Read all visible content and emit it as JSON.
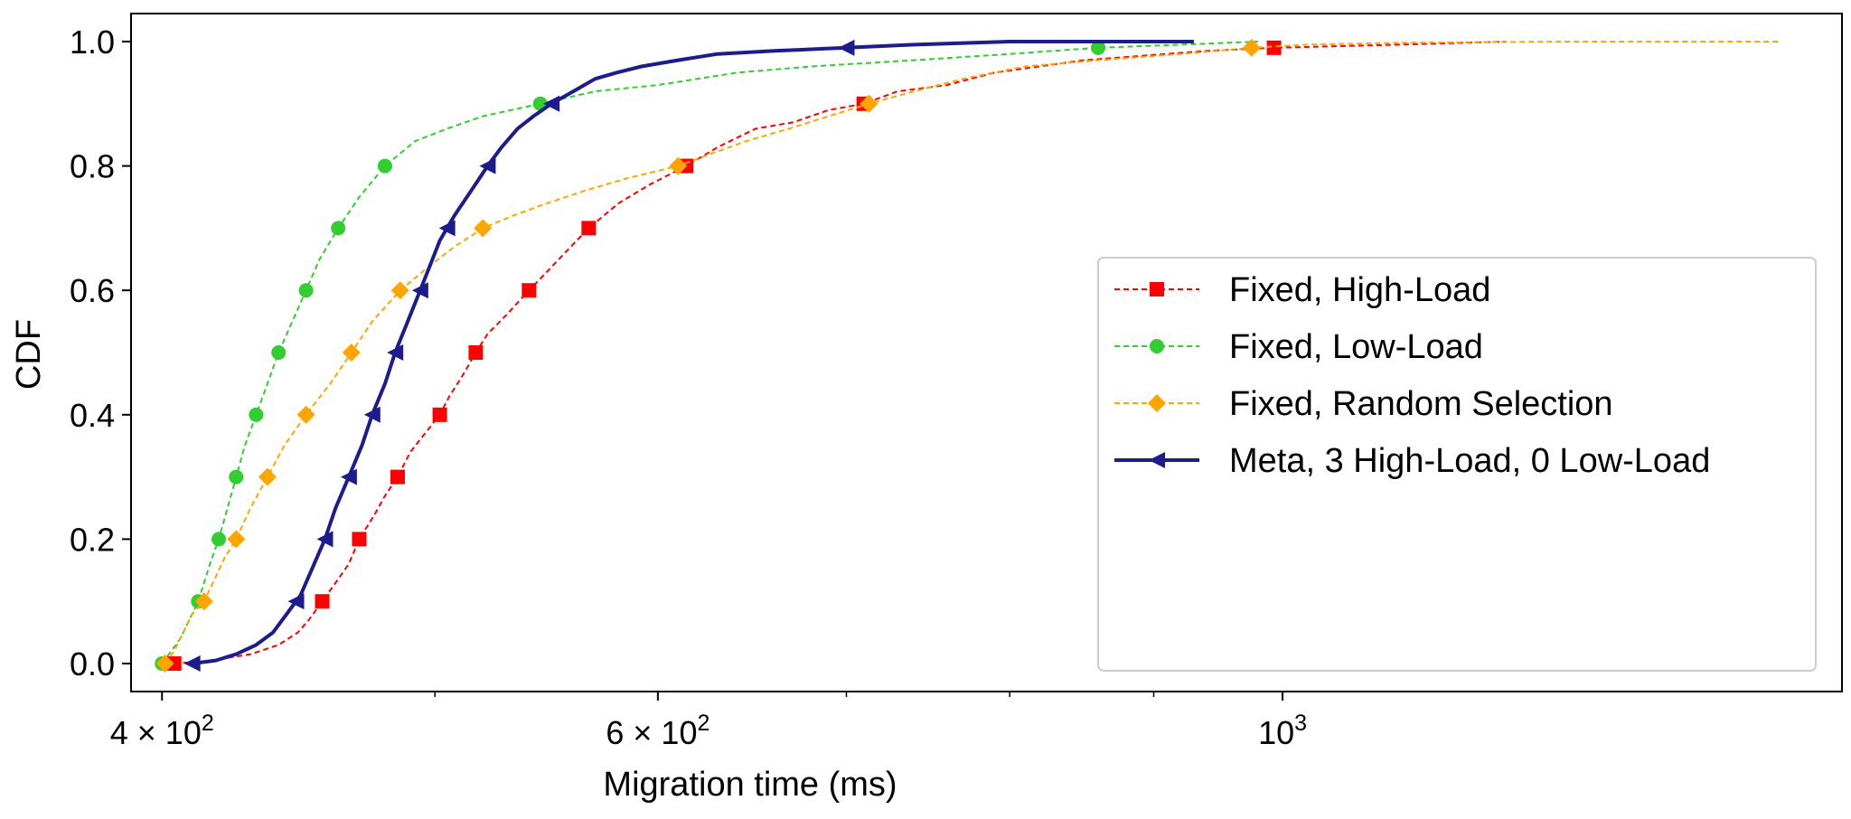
{
  "chart_data": {
    "type": "line",
    "xlabel": "Migration time (ms)",
    "ylabel": "CDF",
    "xscale": "log",
    "xlim": [
      390,
      1580
    ],
    "ylim": [
      -0.045,
      1.045
    ],
    "x_ticks": [
      {
        "value": 400,
        "base": "4 × 10",
        "exp": "2"
      },
      {
        "value": 600,
        "base": "6 × 10",
        "exp": "2"
      },
      {
        "value": 1000,
        "base": "10",
        "exp": "3"
      }
    ],
    "x_minor_ticks": [
      500,
      700,
      800,
      900
    ],
    "y_ticks": [
      {
        "value": 0.0,
        "label": "0.0"
      },
      {
        "value": 0.2,
        "label": "0.2"
      },
      {
        "value": 0.4,
        "label": "0.4"
      },
      {
        "value": 0.6,
        "label": "0.6"
      },
      {
        "value": 0.8,
        "label": "0.8"
      },
      {
        "value": 1.0,
        "label": "1.0"
      }
    ],
    "grid": false,
    "legend_position": "right",
    "series": [
      {
        "name": "Fixed, High-Load",
        "color": "#ff0000",
        "marker": "square",
        "line_style": "dashed",
        "x": [
          404,
          415,
          430,
          440,
          447,
          451,
          456,
          461,
          466,
          470,
          476,
          480,
          485,
          490,
          496,
          502,
          506,
          511,
          517,
          522,
          530,
          540,
          548,
          556,
          567,
          581,
          596,
          614,
          630,
          650,
          670,
          690,
          710,
          730,
          760,
          790,
          850,
          940,
          993,
          1100,
          1200
        ],
        "y": [
          0.0,
          0.004,
          0.015,
          0.03,
          0.05,
          0.07,
          0.1,
          0.13,
          0.16,
          0.2,
          0.24,
          0.27,
          0.3,
          0.34,
          0.37,
          0.4,
          0.43,
          0.46,
          0.5,
          0.53,
          0.56,
          0.6,
          0.63,
          0.66,
          0.7,
          0.74,
          0.77,
          0.8,
          0.83,
          0.86,
          0.87,
          0.89,
          0.9,
          0.92,
          0.93,
          0.95,
          0.97,
          0.985,
          0.99,
          0.995,
          1.0
        ],
        "markers_at": [
          0.0,
          0.1,
          0.2,
          0.3,
          0.4,
          0.5,
          0.6,
          0.7,
          0.8,
          0.9,
          0.99
        ]
      },
      {
        "name": "Fixed, Low-Load",
        "color": "#32cd32",
        "marker": "circle",
        "line_style": "dashed",
        "x": [
          400,
          403,
          406,
          408,
          410,
          412,
          414,
          416,
          419,
          422,
          425,
          428,
          432,
          436,
          440,
          445,
          450,
          455,
          462,
          470,
          480,
          492,
          505,
          520,
          545,
          570,
          600,
          640,
          680,
          740,
          800,
          860,
          920,
          980
        ],
        "y": [
          0.0,
          0.02,
          0.04,
          0.06,
          0.08,
          0.1,
          0.13,
          0.16,
          0.2,
          0.25,
          0.3,
          0.35,
          0.4,
          0.45,
          0.5,
          0.55,
          0.6,
          0.65,
          0.7,
          0.75,
          0.8,
          0.84,
          0.86,
          0.88,
          0.9,
          0.92,
          0.93,
          0.95,
          0.96,
          0.97,
          0.98,
          0.99,
          0.995,
          1.0
        ],
        "markers_at": [
          0.0,
          0.1,
          0.2,
          0.3,
          0.4,
          0.5,
          0.6,
          0.7,
          0.8,
          0.9,
          0.99
        ]
      },
      {
        "name": "Fixed, Random Selection",
        "color": "#ffa500",
        "marker": "diamond",
        "line_style": "dashed",
        "x": [
          401,
          404,
          407,
          410,
          414,
          418,
          421,
          425,
          430,
          436,
          442,
          450,
          459,
          467,
          475,
          486,
          498,
          508,
          520,
          533,
          548,
          565,
          585,
          610,
          627,
          645,
          668,
          690,
          713,
          740,
          770,
          810,
          860,
          920,
          975,
          1020,
          1100,
          1250,
          1500
        ],
        "y": [
          0.0,
          0.02,
          0.05,
          0.08,
          0.1,
          0.14,
          0.17,
          0.2,
          0.25,
          0.3,
          0.35,
          0.4,
          0.45,
          0.5,
          0.55,
          0.6,
          0.64,
          0.67,
          0.7,
          0.72,
          0.74,
          0.76,
          0.78,
          0.8,
          0.82,
          0.84,
          0.86,
          0.88,
          0.9,
          0.92,
          0.94,
          0.96,
          0.97,
          0.98,
          0.99,
          0.995,
          0.998,
          1.0,
          1.0
        ],
        "markers_at": [
          0.0,
          0.1,
          0.2,
          0.3,
          0.4,
          0.5,
          0.6,
          0.7,
          0.8,
          0.9,
          0.99
        ]
      },
      {
        "name": "Meta, 3 High-Load, 0 Low-Load",
        "color": "#1c1c8c",
        "marker": "triangle-left",
        "line_style": "solid",
        "x": [
          410,
          418,
          425,
          432,
          438,
          443,
          448,
          452,
          457,
          461,
          466,
          471,
          475,
          480,
          484,
          489,
          494,
          498,
          502,
          508,
          515,
          522,
          528,
          535,
          542,
          550,
          560,
          570,
          580,
          592,
          610,
          630,
          660,
          700,
          740,
          800,
          870,
          930
        ],
        "y": [
          0.0,
          0.005,
          0.015,
          0.03,
          0.05,
          0.08,
          0.11,
          0.15,
          0.2,
          0.25,
          0.3,
          0.35,
          0.4,
          0.45,
          0.5,
          0.55,
          0.6,
          0.64,
          0.68,
          0.72,
          0.76,
          0.8,
          0.83,
          0.86,
          0.88,
          0.9,
          0.92,
          0.94,
          0.95,
          0.96,
          0.97,
          0.98,
          0.985,
          0.99,
          0.995,
          1.0,
          1.0,
          1.0
        ],
        "markers_at": [
          0.0,
          0.1,
          0.2,
          0.3,
          0.4,
          0.5,
          0.6,
          0.7,
          0.8,
          0.9,
          0.99
        ]
      }
    ]
  }
}
